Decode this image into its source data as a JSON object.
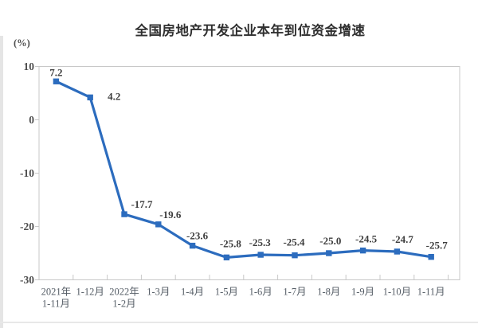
{
  "page": {
    "background": "#ffffff",
    "left_strip_color": "#e5e5e5",
    "divider_color": "#e8e8e8"
  },
  "chart_data": {
    "type": "line",
    "title": "全国房地产开发企业本年到位资金增速",
    "unit_label": "(%)",
    "categories": [
      [
        "2021年",
        "1-11月"
      ],
      [
        "1-12月"
      ],
      [
        "2022年",
        "1-2月"
      ],
      [
        "1-3月"
      ],
      [
        "1-4月"
      ],
      [
        "1-5月"
      ],
      [
        "1-6月"
      ],
      [
        "1-7月"
      ],
      [
        "1-8月"
      ],
      [
        "1-9月"
      ],
      [
        "1-10月"
      ],
      [
        "1-11月"
      ]
    ],
    "values": [
      7.2,
      4.2,
      -17.7,
      -19.6,
      -23.6,
      -25.8,
      -25.3,
      -25.4,
      -25.0,
      -24.5,
      -24.7,
      -25.7
    ],
    "labels": [
      "7.2",
      "4.2",
      "-17.7",
      "-19.6",
      "-23.6",
      "-25.8",
      "-25.3",
      "-25.4",
      "-25.0",
      "-24.5",
      "-24.7",
      "-25.7"
    ],
    "y_ticks": [
      10,
      0,
      -10,
      -20,
      -30
    ],
    "ylim": [
      -30,
      10
    ],
    "xlabel": "",
    "ylabel": "(%)",
    "grid": false,
    "legend_position": "none",
    "marker_style": "square",
    "colors": {
      "line": "#2c6cbe",
      "marker": "#2c6cbe",
      "axis": "#c8c8c8",
      "data_label": "#3d3d3d",
      "y_tick_label": "#4d4d4d",
      "x_tick_label": "#555d66",
      "title": "#2f2f2f"
    },
    "label_offsets": {
      "dx": [
        0,
        30,
        22,
        15,
        6,
        5,
        -1,
        -1,
        2,
        4,
        7,
        7
      ],
      "dy": [
        -7,
        3,
        -8,
        -8,
        -8,
        -13,
        -11,
        -12,
        -11,
        -10,
        -11,
        -10
      ]
    }
  }
}
